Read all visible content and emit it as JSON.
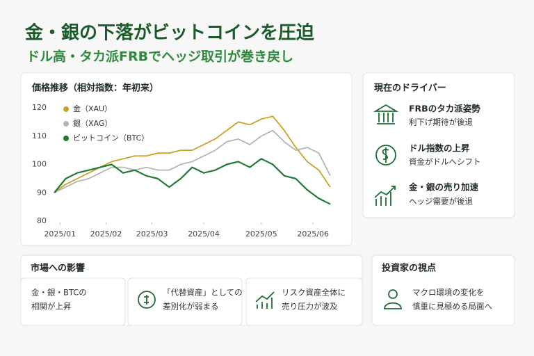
{
  "header": {
    "title": "金・銀の下落がビットコインを圧迫",
    "subtitle": "ドル高・タカ派FRBでヘッジ取引が巻き戻し"
  },
  "chart_data": {
    "type": "line",
    "title": "価格推移（相対指数：年初来）",
    "x": [
      0,
      1,
      2,
      3,
      4,
      5,
      6,
      7,
      8,
      9,
      10,
      11,
      12,
      13,
      14,
      15,
      16,
      17,
      18,
      19,
      20,
      21,
      22,
      23,
      24
    ],
    "xlim": [
      0,
      24
    ],
    "xticks": [
      {
        "value": 0.5,
        "label": "2025/01"
      },
      {
        "value": 4.5,
        "label": "2025/02"
      },
      {
        "value": 8.5,
        "label": "2025/03"
      },
      {
        "value": 13,
        "label": "2025/04"
      },
      {
        "value": 18,
        "label": "2025/05"
      },
      {
        "value": 22.5,
        "label": "2025/06"
      }
    ],
    "ylim": [
      80,
      120
    ],
    "yticks": [
      80,
      90,
      100,
      110,
      120
    ],
    "grid": false,
    "series": [
      {
        "name": "金（XAU）",
        "color": "#c9a227",
        "values": [
          90,
          93,
          95,
          97,
          99,
          101,
          102,
          103,
          103,
          104,
          104,
          105,
          105,
          107,
          109,
          112,
          115,
          114,
          116,
          117,
          112,
          106,
          101,
          98,
          92
        ]
      },
      {
        "name": "銀（XAG）",
        "color": "#b5b5b5",
        "values": [
          90,
          92,
          94,
          95,
          97,
          99,
          99,
          98,
          99,
          98,
          98,
          100,
          101,
          103,
          105,
          108,
          109,
          107,
          110,
          112,
          108,
          105,
          106,
          104,
          96
        ]
      },
      {
        "name": "ビットコイン（BTC）",
        "color": "#1e7a34",
        "values": [
          90,
          95,
          97,
          98,
          99,
          100,
          97,
          98,
          96,
          95,
          92,
          95,
          99,
          97,
          98,
          100,
          101,
          99,
          102,
          100,
          96,
          95,
          91,
          88,
          86
        ]
      }
    ]
  },
  "drivers": {
    "title": "現在のドライバー",
    "items": [
      {
        "title": "FRBのタカ派姿勢",
        "text": "利下げ期待が後退"
      },
      {
        "title": "ドル指数の上昇",
        "text": "資金がドルへシフト"
      },
      {
        "title": "金・銀の売り加速",
        "text": "ヘッジ需要が後退"
      }
    ]
  },
  "impact": {
    "title": "市場への影響",
    "items": [
      {
        "lines": [
          "金・銀・BTCの",
          "相関が上昇"
        ]
      },
      {
        "lines": [
          "「代替資産」としての",
          "差別化が弱まる"
        ]
      },
      {
        "lines": [
          "リスク資産全体に",
          "売り圧力が波及"
        ]
      }
    ]
  },
  "viewpoint": {
    "title": "投資家の視点",
    "lines": [
      "マクロ環境の変化を",
      "慎重に見極める局面へ"
    ]
  }
}
